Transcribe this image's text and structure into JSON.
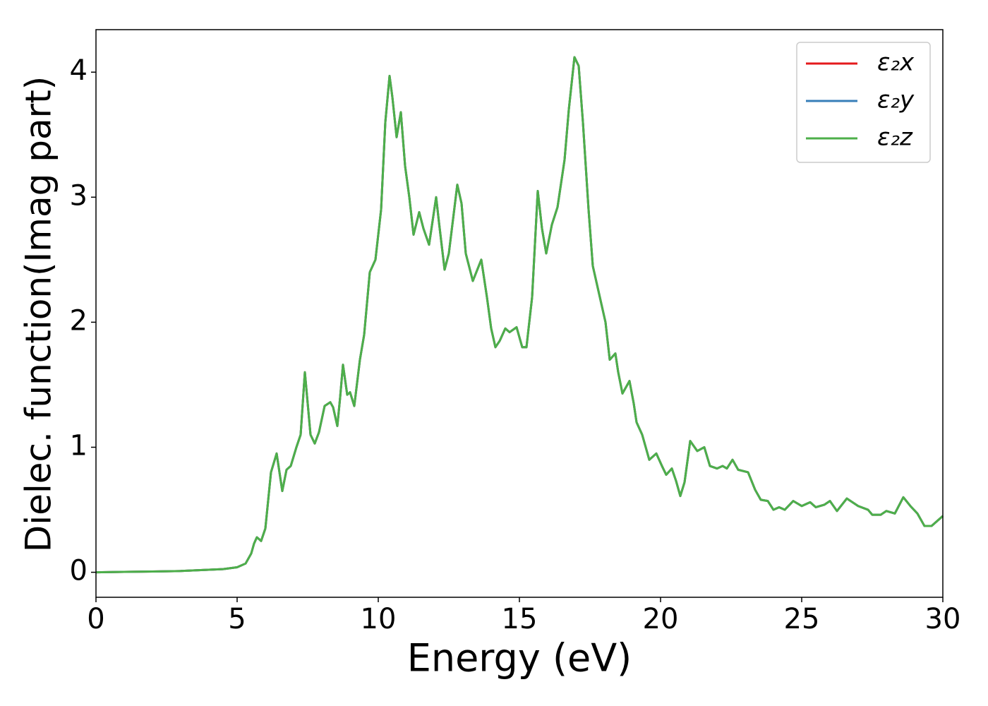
{
  "chart_data": {
    "type": "line",
    "xlabel": "Energy (eV)",
    "ylabel": "Dielec. function(Imag part)",
    "xlim": [
      0,
      30
    ],
    "ylim": [
      -0.2,
      4.34
    ],
    "xticks": [
      0,
      5,
      10,
      15,
      20,
      25,
      30
    ],
    "yticks": [
      0,
      1,
      2,
      3,
      4
    ],
    "legend": "upper right",
    "x": [
      0,
      1,
      2,
      3,
      4,
      4.5,
      5,
      5.3,
      5.5,
      5.6,
      5.7,
      5.85,
      6.0,
      6.2,
      6.4,
      6.5,
      6.6,
      6.75,
      6.9,
      7.1,
      7.25,
      7.4,
      7.5,
      7.6,
      7.75,
      7.9,
      8.1,
      8.3,
      8.4,
      8.55,
      8.65,
      8.75,
      8.9,
      9.0,
      9.15,
      9.35,
      9.5,
      9.7,
      9.9,
      10.1,
      10.25,
      10.4,
      10.5,
      10.65,
      10.8,
      10.95,
      11.1,
      11.25,
      11.45,
      11.6,
      11.8,
      12.05,
      12.15,
      12.35,
      12.5,
      12.8,
      12.95,
      13.1,
      13.35,
      13.65,
      13.85,
      14.0,
      14.15,
      14.3,
      14.5,
      14.65,
      14.9,
      15.1,
      15.25,
      15.45,
      15.65,
      15.8,
      15.95,
      16.15,
      16.35,
      16.6,
      16.75,
      16.95,
      17.1,
      17.25,
      17.45,
      17.6,
      17.8,
      18.05,
      18.2,
      18.4,
      18.5,
      18.65,
      18.9,
      19.05,
      19.15,
      19.35,
      19.6,
      19.85,
      20.05,
      20.2,
      20.4,
      20.55,
      20.7,
      20.85,
      21.05,
      21.3,
      21.55,
      21.75,
      22.0,
      22.2,
      22.35,
      22.55,
      22.75,
      23.1,
      23.35,
      23.55,
      23.8,
      24.0,
      24.2,
      24.4,
      24.7,
      25.0,
      25.3,
      25.5,
      25.8,
      26.0,
      26.25,
      26.6,
      27.0,
      27.35,
      27.5,
      27.8,
      28.0,
      28.3,
      28.6,
      28.85,
      29.1,
      29.35,
      29.6,
      30
    ],
    "series": [
      {
        "name": "ε₂x",
        "color": "#e41a1c",
        "values": [
          0,
          0.003,
          0.006,
          0.01,
          0.02,
          0.025,
          0.04,
          0.07,
          0.15,
          0.23,
          0.28,
          0.25,
          0.35,
          0.8,
          0.95,
          0.8,
          0.65,
          0.82,
          0.85,
          1.0,
          1.1,
          1.6,
          1.35,
          1.1,
          1.03,
          1.12,
          1.33,
          1.36,
          1.32,
          1.17,
          1.4,
          1.66,
          1.42,
          1.44,
          1.33,
          1.7,
          1.9,
          2.4,
          2.5,
          2.9,
          3.6,
          3.97,
          3.8,
          3.48,
          3.68,
          3.25,
          3.0,
          2.7,
          2.88,
          2.75,
          2.62,
          3.0,
          2.8,
          2.42,
          2.55,
          3.1,
          2.95,
          2.55,
          2.33,
          2.5,
          2.2,
          1.95,
          1.8,
          1.85,
          1.95,
          1.92,
          1.96,
          1.8,
          1.8,
          2.2,
          3.05,
          2.75,
          2.55,
          2.78,
          2.92,
          3.3,
          3.7,
          4.12,
          4.05,
          3.6,
          2.9,
          2.45,
          2.25,
          2.0,
          1.7,
          1.75,
          1.6,
          1.43,
          1.53,
          1.35,
          1.2,
          1.1,
          0.9,
          0.95,
          0.85,
          0.78,
          0.83,
          0.73,
          0.61,
          0.72,
          1.05,
          0.97,
          1.0,
          0.85,
          0.83,
          0.85,
          0.83,
          0.9,
          0.82,
          0.8,
          0.66,
          0.58,
          0.57,
          0.5,
          0.52,
          0.5,
          0.57,
          0.53,
          0.56,
          0.52,
          0.54,
          0.57,
          0.49,
          0.59,
          0.53,
          0.5,
          0.46,
          0.46,
          0.49,
          0.47,
          0.6,
          0.53,
          0.47,
          0.37,
          0.37,
          0.45
        ]
      },
      {
        "name": "ε₂y",
        "color": "#377eb8",
        "values": [
          0,
          0.003,
          0.006,
          0.01,
          0.02,
          0.025,
          0.04,
          0.07,
          0.15,
          0.23,
          0.28,
          0.25,
          0.35,
          0.8,
          0.95,
          0.8,
          0.65,
          0.82,
          0.85,
          1.0,
          1.1,
          1.6,
          1.35,
          1.1,
          1.03,
          1.12,
          1.33,
          1.36,
          1.32,
          1.17,
          1.4,
          1.66,
          1.42,
          1.44,
          1.33,
          1.7,
          1.9,
          2.4,
          2.5,
          2.9,
          3.6,
          3.97,
          3.8,
          3.48,
          3.68,
          3.25,
          3.0,
          2.7,
          2.88,
          2.75,
          2.62,
          3.0,
          2.8,
          2.42,
          2.55,
          3.1,
          2.95,
          2.55,
          2.33,
          2.5,
          2.2,
          1.95,
          1.8,
          1.85,
          1.95,
          1.92,
          1.96,
          1.8,
          1.8,
          2.2,
          3.05,
          2.75,
          2.55,
          2.78,
          2.92,
          3.3,
          3.7,
          4.12,
          4.05,
          3.6,
          2.9,
          2.45,
          2.25,
          2.0,
          1.7,
          1.75,
          1.6,
          1.43,
          1.53,
          1.35,
          1.2,
          1.1,
          0.9,
          0.95,
          0.85,
          0.78,
          0.83,
          0.73,
          0.61,
          0.72,
          1.05,
          0.97,
          1.0,
          0.85,
          0.83,
          0.85,
          0.83,
          0.9,
          0.82,
          0.8,
          0.66,
          0.58,
          0.57,
          0.5,
          0.52,
          0.5,
          0.57,
          0.53,
          0.56,
          0.52,
          0.54,
          0.57,
          0.49,
          0.59,
          0.53,
          0.5,
          0.46,
          0.46,
          0.49,
          0.47,
          0.6,
          0.53,
          0.47,
          0.37,
          0.37,
          0.45
        ]
      },
      {
        "name": "ε₂z",
        "color": "#4daf4a",
        "values": [
          0,
          0.003,
          0.006,
          0.01,
          0.02,
          0.025,
          0.04,
          0.07,
          0.15,
          0.23,
          0.28,
          0.25,
          0.35,
          0.8,
          0.95,
          0.8,
          0.65,
          0.82,
          0.85,
          1.0,
          1.1,
          1.6,
          1.35,
          1.1,
          1.03,
          1.12,
          1.33,
          1.36,
          1.32,
          1.17,
          1.4,
          1.66,
          1.42,
          1.44,
          1.33,
          1.7,
          1.9,
          2.4,
          2.5,
          2.9,
          3.6,
          3.97,
          3.8,
          3.48,
          3.68,
          3.25,
          3.0,
          2.7,
          2.88,
          2.75,
          2.62,
          3.0,
          2.8,
          2.42,
          2.55,
          3.1,
          2.95,
          2.55,
          2.33,
          2.5,
          2.2,
          1.95,
          1.8,
          1.85,
          1.95,
          1.92,
          1.96,
          1.8,
          1.8,
          2.2,
          3.05,
          2.75,
          2.55,
          2.78,
          2.92,
          3.3,
          3.7,
          4.12,
          4.05,
          3.6,
          2.9,
          2.45,
          2.25,
          2.0,
          1.7,
          1.75,
          1.6,
          1.43,
          1.53,
          1.35,
          1.2,
          1.1,
          0.9,
          0.95,
          0.85,
          0.78,
          0.83,
          0.73,
          0.61,
          0.72,
          1.05,
          0.97,
          1.0,
          0.85,
          0.83,
          0.85,
          0.83,
          0.9,
          0.82,
          0.8,
          0.66,
          0.58,
          0.57,
          0.5,
          0.52,
          0.5,
          0.57,
          0.53,
          0.56,
          0.52,
          0.54,
          0.57,
          0.49,
          0.59,
          0.53,
          0.5,
          0.46,
          0.46,
          0.49,
          0.47,
          0.6,
          0.53,
          0.47,
          0.37,
          0.37,
          0.45
        ]
      }
    ]
  }
}
